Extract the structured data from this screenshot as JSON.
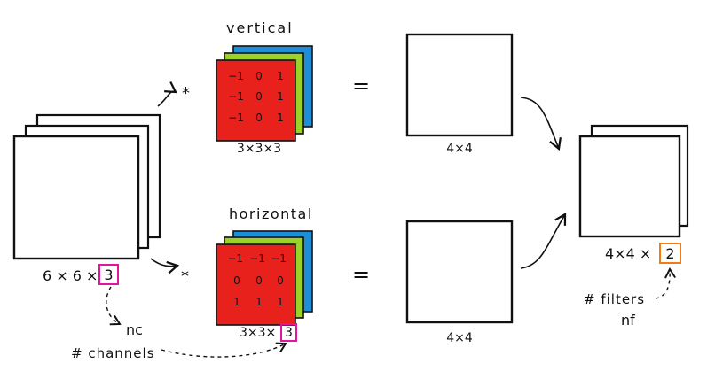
{
  "input": {
    "dims_prefix": "6 × 6 ×",
    "channels": "3"
  },
  "convolve_symbol": "*",
  "equals_symbol": "=",
  "filters": [
    {
      "label": "vertical",
      "matrix": [
        [
          "−1",
          "0",
          "1"
        ],
        [
          "−1",
          "0",
          "1"
        ],
        [
          "−1",
          "0",
          "1"
        ]
      ],
      "dims": "3×3×3"
    },
    {
      "label": "horizontal",
      "matrix": [
        [
          "−1",
          "−1",
          "−1"
        ],
        [
          "0",
          "0",
          "0"
        ],
        [
          "1",
          "1",
          "1"
        ]
      ],
      "dims_prefix": "3×3×",
      "dims_channels": "3"
    }
  ],
  "outputs": [
    {
      "dims": "4×4"
    },
    {
      "dims": "4×4"
    }
  ],
  "stacked_output": {
    "dims_prefix": "4×4 ×",
    "num_filters": "2"
  },
  "annotations": {
    "nc": "nc",
    "channels_label": "# channels",
    "filters_label": "# filters",
    "nf": "nf"
  },
  "colors": {
    "filter_front": "#e8211d",
    "filter_middle": "#9bd22a",
    "filter_back": "#1e8fd6",
    "channels_highlight": "#e0179a",
    "filters_highlight": "#f07d14"
  }
}
